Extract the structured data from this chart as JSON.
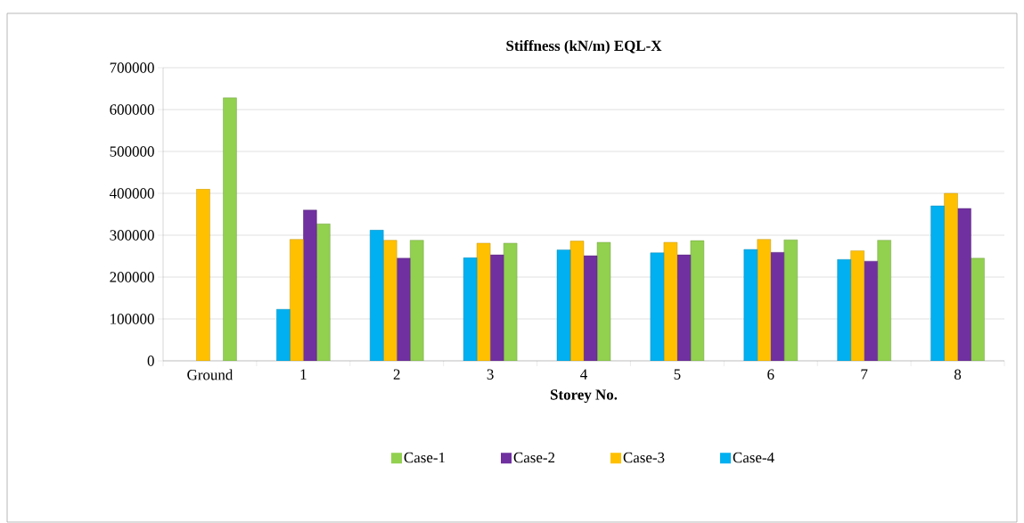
{
  "chart_data": {
    "type": "bar",
    "title": "Stiffness (kN/m) EQL-X",
    "xlabel": "Storey No.",
    "categories": [
      "Ground",
      "1",
      "2",
      "3",
      "4",
      "5",
      "6",
      "7",
      "8"
    ],
    "series": [
      {
        "name": "Case-1",
        "color": "#92d050",
        "values": [
          628000,
          327000,
          288000,
          281000,
          283000,
          287000,
          289000,
          288000,
          245000
        ]
      },
      {
        "name": "Case-2",
        "color": "#7030a0",
        "values": [
          null,
          360000,
          245000,
          253000,
          251000,
          253000,
          259000,
          238000,
          364000
        ]
      },
      {
        "name": "Case-3",
        "color": "#ffc000",
        "values": [
          410000,
          290000,
          288000,
          281000,
          286000,
          283000,
          290000,
          263000,
          400000
        ]
      },
      {
        "name": "Case-4",
        "color": "#00b0f0",
        "values": [
          null,
          123000,
          312000,
          246000,
          265000,
          258000,
          266000,
          242000,
          370000
        ]
      }
    ],
    "ylim": [
      0,
      700000
    ],
    "yticks": [
      0,
      100000,
      200000,
      300000,
      400000,
      500000,
      600000,
      700000
    ],
    "grid": "y",
    "legend": "bottom"
  }
}
